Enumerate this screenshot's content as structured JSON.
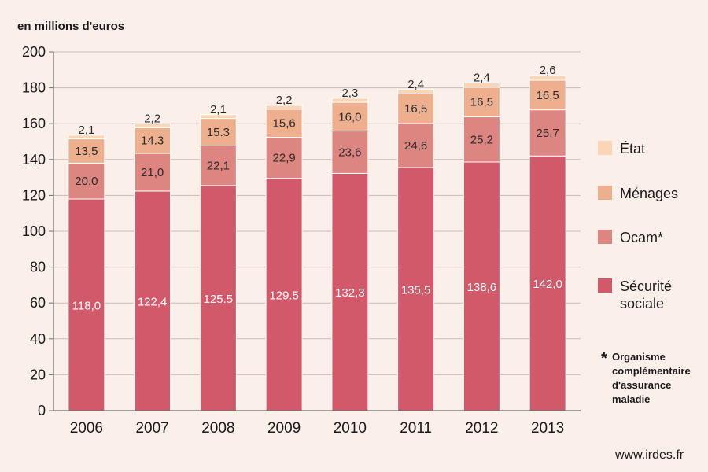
{
  "chart_data": {
    "type": "bar",
    "stacked": true,
    "title": "",
    "unit_label": "en millions d'euros",
    "categories": [
      "2006",
      "2007",
      "2008",
      "2009",
      "2010",
      "2011",
      "2012",
      "2013"
    ],
    "series": [
      {
        "name": "Sécurité sociale",
        "color": "#d2596a",
        "label_color": "#ffffff",
        "values": [
          118.0,
          122.4,
          125.5,
          129.5,
          132.3,
          135.5,
          138.6,
          142.0
        ],
        "labels": [
          "118,0",
          "122,4",
          "125.5",
          "129.5",
          "132,3",
          "135,5",
          "138,6",
          "142,0"
        ]
      },
      {
        "name": "Ocam*",
        "color": "#dd8580",
        "label_color": "#2b2b2b",
        "values": [
          20.0,
          21.0,
          22.1,
          22.9,
          23.6,
          24.6,
          25.2,
          25.7
        ],
        "labels": [
          "20,0",
          "21,0",
          "22,1",
          "22,9",
          "23,6",
          "24,6",
          "25,2",
          "25,7"
        ]
      },
      {
        "name": "Ménages",
        "color": "#eeaf8e",
        "label_color": "#2b2b2b",
        "values": [
          13.5,
          14.3,
          15.3,
          15.6,
          16.0,
          16.5,
          16.5,
          16.5
        ],
        "labels": [
          "13,5",
          "14.3",
          "15.3",
          "15,6",
          "16,0",
          "16,5",
          "16,5",
          "16,5"
        ]
      },
      {
        "name": "État",
        "color": "#fbd6b6",
        "label_color": "#2b2b2b",
        "values": [
          2.1,
          2.2,
          2.1,
          2.2,
          2.3,
          2.4,
          2.4,
          2.6
        ],
        "labels": [
          "2,1",
          "2,2",
          "2,1",
          "2,2",
          "2,3",
          "2,4",
          "2,4",
          "2,6"
        ]
      }
    ],
    "legend_order": [
      "État",
      "Ménages",
      "Ocam*",
      "Sécurité sociale"
    ],
    "legend_placement": "right",
    "ylim": [
      0,
      200
    ],
    "yticks": [
      0,
      20,
      40,
      60,
      80,
      100,
      120,
      140,
      160,
      180,
      200
    ],
    "grid": true,
    "footnote_star": "*",
    "footnote_lines": [
      "Organisme",
      "complémentaire",
      "d'assurance",
      "maladie"
    ]
  },
  "source": "www.irdes.fr",
  "colors": {
    "background": "#fbefe9",
    "grid": "#c9bcb6",
    "axis": "#6e6e6e"
  }
}
